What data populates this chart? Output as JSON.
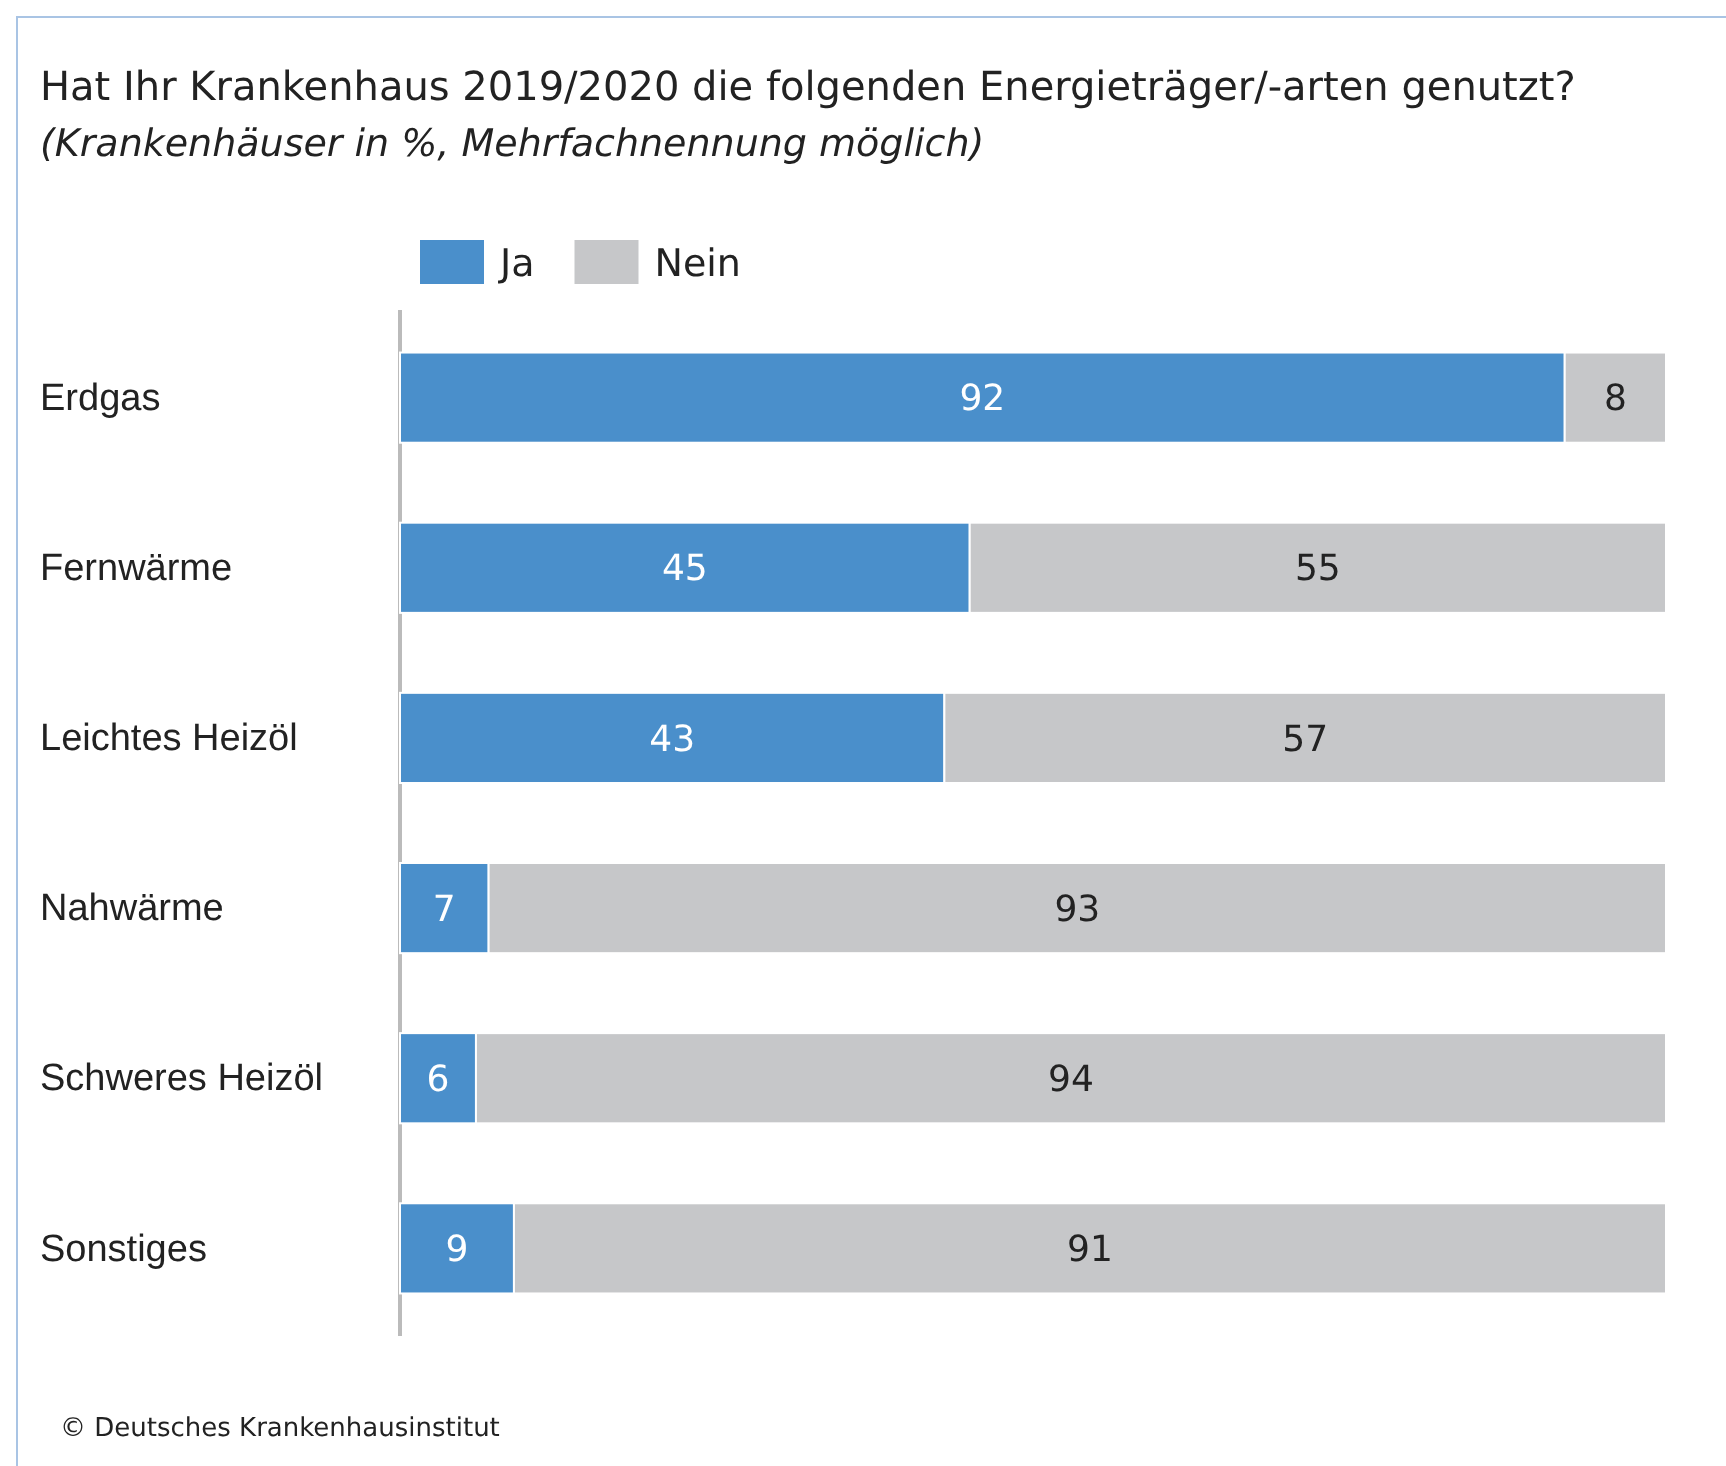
{
  "chart_data": {
    "type": "bar",
    "orientation": "horizontal",
    "stacked": true,
    "title": "Hat Ihr Krankenhaus 2019/2020 die folgenden Energieträger/-arten genutzt?",
    "subtitle": "(Krankenhäuser in %, Mehrfachnennung möglich)",
    "categories": [
      "Erdgas",
      "Fernwärme",
      "Leichtes Heizöl",
      "Nahwärme",
      "Schweres Heizöl",
      "Sonstiges"
    ],
    "series": [
      {
        "name": "Ja",
        "color": "#4a8fcb",
        "values": [
          92,
          45,
          43,
          7,
          6,
          9
        ]
      },
      {
        "name": "Nein",
        "color": "#c6c7c9",
        "values": [
          8,
          55,
          57,
          93,
          94,
          91
        ]
      }
    ],
    "xlim": [
      0,
      100
    ],
    "tick_labels": "y",
    "legend": "top left",
    "data_labels": true,
    "grid": false,
    "annotations": [
      "© Deutsches Krankenhausinstitut"
    ]
  }
}
